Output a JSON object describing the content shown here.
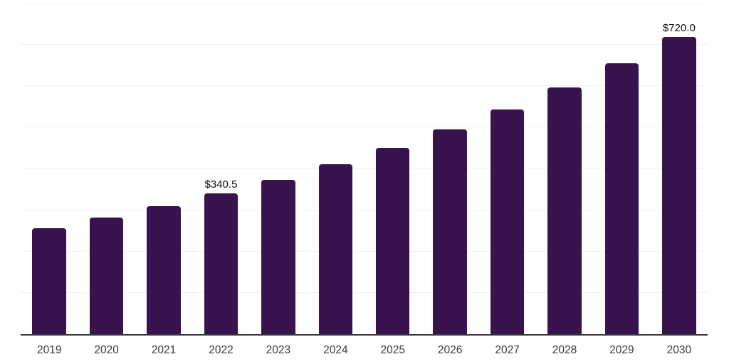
{
  "chart_data": {
    "type": "bar",
    "title": "",
    "xlabel": "",
    "ylabel": "",
    "categories": [
      "2019",
      "2020",
      "2021",
      "2022",
      "2023",
      "2024",
      "2025",
      "2026",
      "2027",
      "2028",
      "2029",
      "2030"
    ],
    "values": [
      257.2,
      282.4,
      310.1,
      340.5,
      373.9,
      410.6,
      450.9,
      495.1,
      543.7,
      597.0,
      655.6,
      720.0
    ],
    "data_labels": [
      "",
      "",
      "",
      "$340.5",
      "",
      "",
      "",
      "",
      "",
      "",
      "",
      "$720.0"
    ],
    "ylim": [
      0,
      800
    ],
    "gridline_step": 100,
    "grid": true,
    "y_axis_tick_labels_visible": false,
    "legend": null
  },
  "style": {
    "background_color": "#ffffff",
    "bar_color": "#38134d",
    "grid_color": "#f2f2f5",
    "axis_line_color": "#383838",
    "tick_label_color": "#3a3a3a",
    "data_label_color": "#0f0f0f"
  }
}
